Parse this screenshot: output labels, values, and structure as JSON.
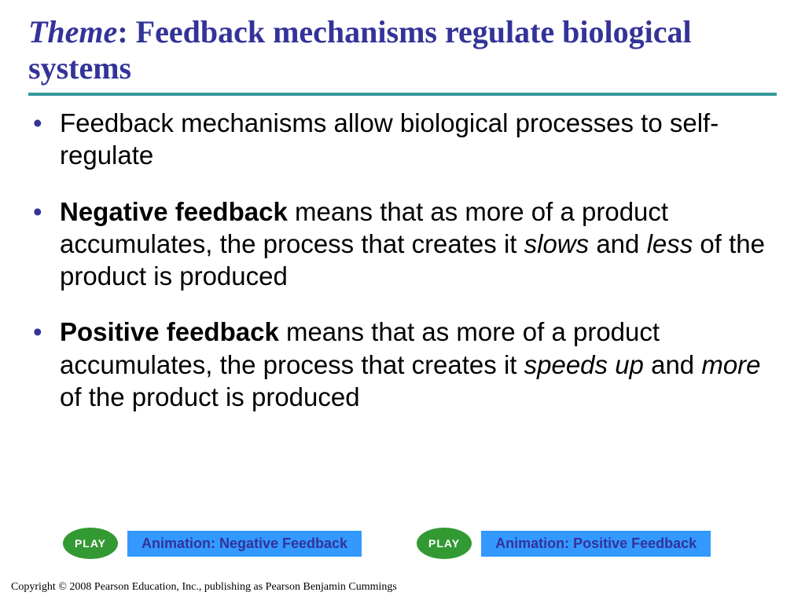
{
  "title": {
    "theme_label": "Theme",
    "rest": ": Feedback mechanisms regulate biological systems",
    "color": "#333399",
    "font_family": "Times New Roman",
    "fontsize_pt": 30
  },
  "divider_color": "#339999",
  "bullets": {
    "marker_color": "#333399",
    "fontsize_pt": 25,
    "items": [
      {
        "runs": [
          {
            "text": "Feedback mechanisms allow biological processes to self-regulate",
            "bold": false,
            "italic": false
          }
        ]
      },
      {
        "runs": [
          {
            "text": "Negative feedback",
            "bold": true,
            "italic": false
          },
          {
            "text": " means that as more of a product accumulates, the process that creates it ",
            "bold": false,
            "italic": false
          },
          {
            "text": "slows",
            "bold": false,
            "italic": true
          },
          {
            "text": " and ",
            "bold": false,
            "italic": false
          },
          {
            "text": "less",
            "bold": false,
            "italic": true
          },
          {
            "text": " of the product is produced",
            "bold": false,
            "italic": false
          }
        ]
      },
      {
        "runs": [
          {
            "text": "Positive feedback",
            "bold": true,
            "italic": false
          },
          {
            "text": " means that as more of a product accumulates, the process that creates it ",
            "bold": false,
            "italic": false
          },
          {
            "text": "speeds up",
            "bold": false,
            "italic": true
          },
          {
            "text": " and ",
            "bold": false,
            "italic": false
          },
          {
            "text": "more",
            "bold": false,
            "italic": true
          },
          {
            "text": " of the product is produced",
            "bold": false,
            "italic": false
          }
        ]
      }
    ]
  },
  "play_buttons": {
    "button_text": "PLAY",
    "button_bg": "#339933",
    "button_text_color": "#ffffff",
    "label_bg": "#3399ff",
    "label_text_color": "#333399",
    "items": [
      {
        "label": "Animation: Negative Feedback"
      },
      {
        "label": "Animation: Positive Feedback"
      }
    ]
  },
  "copyright": "Copyright © 2008 Pearson Education, Inc., publishing  as Pearson Benjamin Cummings",
  "background_color": "#ffffff"
}
